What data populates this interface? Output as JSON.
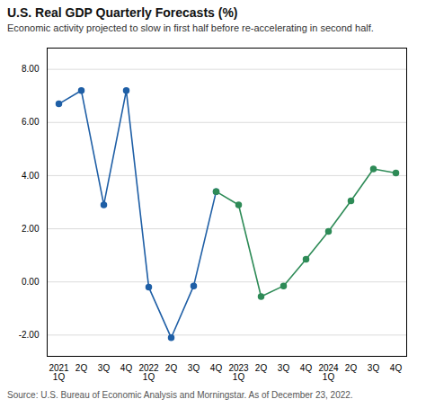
{
  "chart_data": {
    "type": "line",
    "title": "U.S. Real GDP Quarterly Forecasts (%)",
    "subtitle": "Economic activity projected to slow in first half before re-accelerating in second half.",
    "source": "Source: U.S. Bureau of Economic Analysis and Morningstar. As of December 23, 2022.",
    "categories": [
      "2021\n1Q",
      "2Q",
      "3Q",
      "4Q",
      "2022\n1Q",
      "2Q",
      "3Q",
      "4Q",
      "2023\n1Q",
      "2Q",
      "3Q",
      "4Q",
      "2024\n1Q",
      "2Q",
      "3Q",
      "4Q"
    ],
    "series": [
      {
        "color": "#1f5fa6",
        "marker": "circle",
        "values": [
          6.7,
          7.2,
          2.9,
          7.2,
          -0.2,
          -2.1,
          -0.15,
          3.4,
          null,
          null,
          null,
          null,
          null,
          null,
          null,
          null
        ]
      },
      {
        "color": "#2e8b57",
        "marker": "circle",
        "values": [
          null,
          null,
          null,
          null,
          null,
          null,
          null,
          3.4,
          2.9,
          -0.55,
          -0.15,
          0.85,
          1.9,
          3.05,
          4.25,
          4.1
        ]
      }
    ],
    "ylim": [
      -2.8,
      8.8
    ],
    "yticks": [
      {
        "value": -2.0,
        "label": "-2.00"
      },
      {
        "value": 0.0,
        "label": "0.00"
      },
      {
        "value": 2.0,
        "label": "2.00"
      },
      {
        "value": 4.0,
        "label": "4.00"
      },
      {
        "value": 6.0,
        "label": "6.00"
      },
      {
        "value": 8.0,
        "label": "8.00"
      }
    ],
    "grid": true
  }
}
